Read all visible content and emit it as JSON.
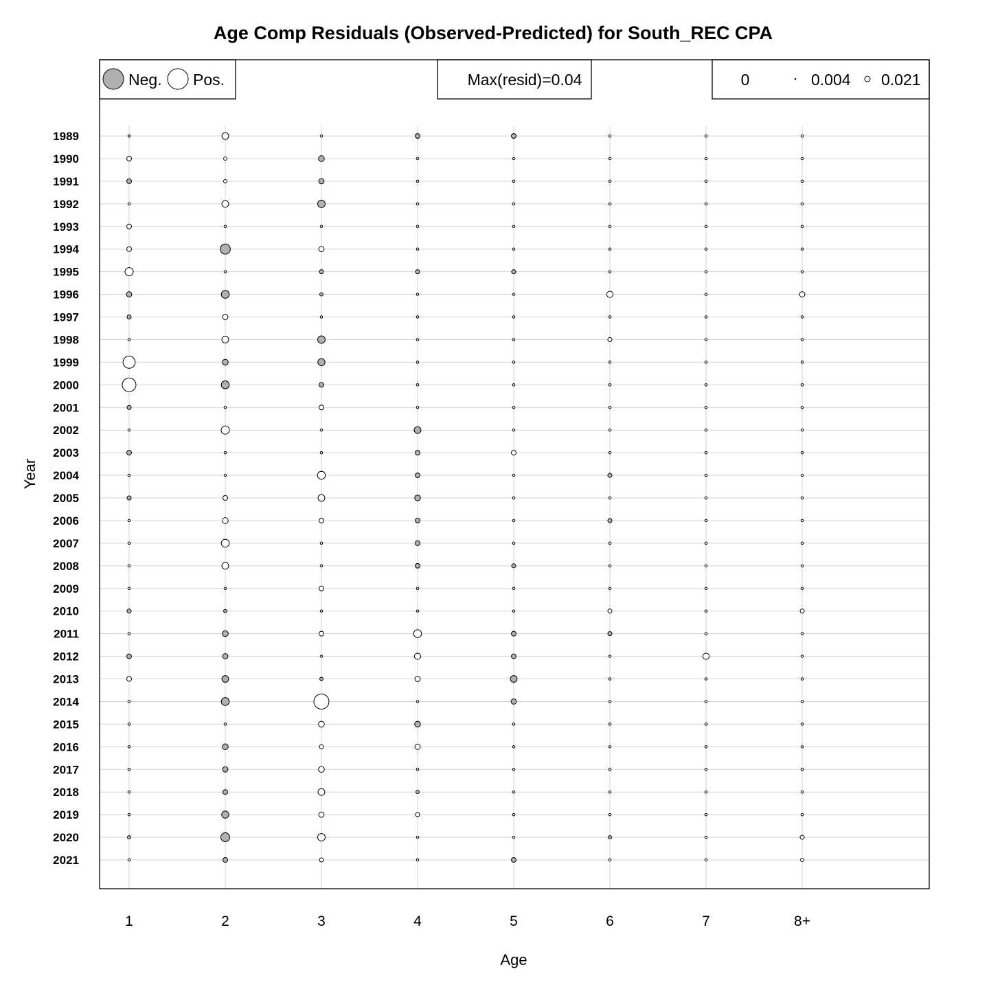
{
  "chart_data": {
    "type": "scatter",
    "subtype": "bubble",
    "title": "Age Comp Residuals (Observed-Predicted) for South_REC CPA",
    "xlabel": "Age",
    "ylabel": "Year",
    "ages": [
      "1",
      "2",
      "3",
      "4",
      "5",
      "6",
      "7",
      "8+"
    ],
    "years": [
      "1989",
      "1990",
      "1991",
      "1992",
      "1993",
      "1994",
      "1995",
      "1996",
      "1997",
      "1998",
      "1999",
      "2000",
      "2001",
      "2002",
      "2003",
      "2004",
      "2005",
      "2006",
      "2007",
      "2008",
      "2009",
      "2010",
      "2011",
      "2012",
      "2013",
      "2014",
      "2015",
      "2016",
      "2017",
      "2018",
      "2019",
      "2020",
      "2021"
    ],
    "grid": true,
    "legend": {
      "sign_box": {
        "neg_label": "Neg.",
        "pos_label": "Pos.",
        "neg_color": "#b0b0b0",
        "pos_color": "#ffffff"
      },
      "max_box": {
        "text": "Max(resid)=0.04"
      },
      "size_box": {
        "entries": [
          "0",
          "0.004",
          "0.021"
        ],
        "values": [
          0,
          0.004,
          0.021
        ]
      }
    },
    "max_resid": 0.04,
    "residuals": [
      [
        -0.001,
        0.008,
        0.001,
        -0.004,
        -0.004,
        0.001,
        0.001,
        0.001
      ],
      [
        0.004,
        0.002,
        -0.006,
        0.001,
        0.001,
        0.001,
        0.001,
        0.001
      ],
      [
        -0.004,
        0.002,
        -0.005,
        0.001,
        0.001,
        0.001,
        0.001,
        0.001
      ],
      [
        0.001,
        0.008,
        -0.01,
        0.001,
        0.001,
        0.001,
        0.001,
        0.001
      ],
      [
        0.004,
        0.001,
        0.001,
        0.001,
        0.001,
        0.001,
        0.001,
        0.001
      ],
      [
        0.004,
        -0.018,
        0.005,
        0.001,
        0.001,
        0.001,
        0.001,
        0.001
      ],
      [
        0.012,
        0.001,
        -0.003,
        -0.003,
        -0.003,
        0.001,
        0.001,
        0.001
      ],
      [
        -0.005,
        -0.011,
        -0.002,
        0.001,
        0.001,
        0.007,
        0.001,
        0.005
      ],
      [
        -0.003,
        0.005,
        0.001,
        0.001,
        0.001,
        0.001,
        0.001,
        0.001
      ],
      [
        0.001,
        0.008,
        -0.01,
        0.001,
        0.001,
        0.003,
        0.001,
        0.001
      ],
      [
        0.026,
        -0.006,
        -0.009,
        0.001,
        0.001,
        0.001,
        0.001,
        0.001
      ],
      [
        0.033,
        -0.011,
        -0.004,
        0.001,
        0.001,
        0.001,
        0.001,
        0.001
      ],
      [
        -0.003,
        0.001,
        0.004,
        0.001,
        0.001,
        0.001,
        0.001,
        0.001
      ],
      [
        0.001,
        0.012,
        0.001,
        -0.008,
        0.001,
        0.001,
        0.001,
        0.001
      ],
      [
        -0.004,
        0.001,
        0.001,
        -0.004,
        0.004,
        0.001,
        0.001,
        0.001
      ],
      [
        0.001,
        0.001,
        0.011,
        -0.004,
        0.001,
        -0.003,
        0.001,
        0.001
      ],
      [
        -0.003,
        0.004,
        0.008,
        -0.006,
        0.001,
        0.001,
        0.001,
        0.001
      ],
      [
        0.001,
        0.006,
        0.004,
        -0.004,
        0.001,
        -0.003,
        0.001,
        0.001
      ],
      [
        0.001,
        0.011,
        0.001,
        -0.004,
        0.001,
        0.001,
        0.001,
        0.001
      ],
      [
        0.001,
        0.008,
        0.001,
        -0.004,
        -0.003,
        0.001,
        0.001,
        0.001
      ],
      [
        0.001,
        0.001,
        0.004,
        0.001,
        0.001,
        0.001,
        0.001,
        0.001
      ],
      [
        -0.003,
        -0.002,
        0.001,
        0.001,
        0.001,
        0.003,
        0.001,
        0.003
      ],
      [
        0.001,
        -0.006,
        0.004,
        0.011,
        -0.004,
        -0.003,
        0.001,
        0.001
      ],
      [
        -0.004,
        -0.005,
        0.001,
        0.007,
        -0.004,
        0.001,
        0.007,
        0.001
      ],
      [
        0.004,
        -0.008,
        -0.002,
        0.005,
        -0.008,
        0.001,
        0.001,
        0.001
      ],
      [
        0.001,
        -0.011,
        0.04,
        0.001,
        -0.005,
        0.001,
        0.001,
        0.001
      ],
      [
        0.001,
        0.001,
        0.006,
        -0.006,
        0.001,
        0.001,
        0.001,
        0.001
      ],
      [
        0.001,
        -0.006,
        0.003,
        0.005,
        0.001,
        0.001,
        0.001,
        0.001
      ],
      [
        0.001,
        -0.005,
        0.006,
        0.001,
        0.001,
        0.001,
        0.001,
        0.001
      ],
      [
        0.001,
        -0.004,
        0.008,
        -0.002,
        0.001,
        0.001,
        0.001,
        0.001
      ],
      [
        0.001,
        -0.009,
        0.005,
        0.003,
        0.001,
        0.001,
        0.001,
        0.001
      ],
      [
        -0.002,
        -0.014,
        0.01,
        0.001,
        0.001,
        -0.002,
        0.001,
        0.003
      ],
      [
        0.001,
        -0.004,
        0.003,
        0.001,
        -0.004,
        0.001,
        0.001,
        0.002
      ]
    ]
  }
}
